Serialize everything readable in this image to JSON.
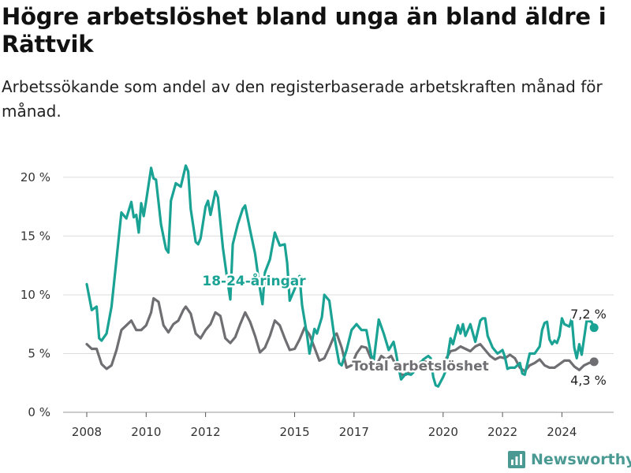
{
  "title": "Högre arbetslöshet bland unga än bland äldre i Rättvik",
  "subtitle": "Arbetssökande som andel av den registerbaserade arbetskraften månad för månad.",
  "brand": {
    "name": "Newsworthy",
    "color": "#4a9a93"
  },
  "chart_data": {
    "type": "line",
    "title": "Högre arbetslöshet bland unga än bland äldre i Rättvik",
    "subtitle": "Arbetssökande som andel av den registerbaserade arbetskraften månad för månad.",
    "xlabel": "",
    "ylabel": "",
    "x_ticks": [
      "2008",
      "2010",
      "2012",
      "2015",
      "2017",
      "2020",
      "2022",
      "2024"
    ],
    "y_ticks": [
      "0 %",
      "5 %",
      "10 %",
      "15 %",
      "20 %"
    ],
    "ylim": [
      0,
      21
    ],
    "xlim": [
      "2007-06",
      "2025-12"
    ],
    "grid": true,
    "legend": "inline labels",
    "series": [
      {
        "name": "18-24-åringar",
        "color": "#1aa394",
        "last_label": "7,2 %",
        "points": [
          [
            "2008-01",
            10.9
          ],
          [
            "2008-03",
            8.7
          ],
          [
            "2008-05",
            9.0
          ],
          [
            "2008-06",
            6.3
          ],
          [
            "2008-07",
            6.1
          ],
          [
            "2008-09",
            6.7
          ],
          [
            "2008-11",
            9.0
          ],
          [
            "2009-01",
            13.0
          ],
          [
            "2009-03",
            17.0
          ],
          [
            "2009-05",
            16.5
          ],
          [
            "2009-07",
            17.9
          ],
          [
            "2009-08",
            16.6
          ],
          [
            "2009-09",
            16.8
          ],
          [
            "2009-10",
            15.3
          ],
          [
            "2009-11",
            17.8
          ],
          [
            "2009-12",
            16.7
          ],
          [
            "2010-01",
            18.0
          ],
          [
            "2010-03",
            20.8
          ],
          [
            "2010-04",
            19.9
          ],
          [
            "2010-05",
            19.8
          ],
          [
            "2010-07",
            16.0
          ],
          [
            "2010-09",
            13.9
          ],
          [
            "2010-10",
            13.6
          ],
          [
            "2010-11",
            18.0
          ],
          [
            "2011-01",
            19.5
          ],
          [
            "2011-03",
            19.2
          ],
          [
            "2011-05",
            21.0
          ],
          [
            "2011-06",
            20.5
          ],
          [
            "2011-07",
            17.3
          ],
          [
            "2011-09",
            14.5
          ],
          [
            "2011-10",
            14.3
          ],
          [
            "2011-11",
            14.8
          ],
          [
            "2012-01",
            17.5
          ],
          [
            "2012-02",
            18.0
          ],
          [
            "2012-03",
            16.8
          ],
          [
            "2012-05",
            18.8
          ],
          [
            "2012-06",
            18.3
          ],
          [
            "2012-08",
            14.0
          ],
          [
            "2012-10",
            11.0
          ],
          [
            "2012-11",
            9.6
          ],
          [
            "2012-12",
            14.3
          ],
          [
            "2013-02",
            16.0
          ],
          [
            "2013-04",
            17.3
          ],
          [
            "2013-05",
            17.6
          ],
          [
            "2013-07",
            15.5
          ],
          [
            "2013-09",
            13.5
          ],
          [
            "2013-11",
            10.5
          ],
          [
            "2013-12",
            9.2
          ],
          [
            "2014-01",
            11.9
          ],
          [
            "2014-03",
            13.0
          ],
          [
            "2014-05",
            15.3
          ],
          [
            "2014-07",
            14.2
          ],
          [
            "2014-09",
            14.3
          ],
          [
            "2014-10",
            12.7
          ],
          [
            "2014-11",
            9.5
          ],
          [
            "2015-01",
            10.5
          ],
          [
            "2015-03",
            11.6
          ],
          [
            "2015-04",
            9.1
          ],
          [
            "2015-06",
            6.6
          ],
          [
            "2015-07",
            5.0
          ],
          [
            "2015-09",
            7.1
          ],
          [
            "2015-10",
            6.7
          ],
          [
            "2015-12",
            8.1
          ],
          [
            "2016-01",
            10.0
          ],
          [
            "2016-03",
            9.5
          ],
          [
            "2016-05",
            6.5
          ],
          [
            "2016-07",
            4.2
          ],
          [
            "2016-08",
            4.0
          ],
          [
            "2016-10",
            5.3
          ],
          [
            "2016-12",
            7.0
          ],
          [
            "2017-02",
            7.5
          ],
          [
            "2017-04",
            7.0
          ],
          [
            "2017-06",
            7.0
          ],
          [
            "2017-08",
            4.8
          ],
          [
            "2017-09",
            4.5
          ],
          [
            "2017-11",
            7.9
          ],
          [
            "2018-01",
            6.7
          ],
          [
            "2018-03",
            5.3
          ],
          [
            "2018-05",
            6.0
          ],
          [
            "2018-06",
            5.0
          ],
          [
            "2018-07",
            3.8
          ],
          [
            "2018-08",
            2.8
          ],
          [
            "2018-10",
            3.3
          ],
          [
            "2018-12",
            3.2
          ],
          [
            "2019-01",
            3.4
          ],
          [
            "2019-03",
            4.0
          ],
          [
            "2019-05",
            4.5
          ],
          [
            "2019-07",
            4.8
          ],
          [
            "2019-08",
            4.6
          ],
          [
            "2019-09",
            3.0
          ],
          [
            "2019-10",
            2.3
          ],
          [
            "2019-11",
            2.2
          ],
          [
            "2020-01",
            3.0
          ],
          [
            "2020-02",
            3.5
          ],
          [
            "2020-03",
            5.0
          ],
          [
            "2020-04",
            6.3
          ],
          [
            "2020-05",
            5.8
          ],
          [
            "2020-07",
            7.4
          ],
          [
            "2020-08",
            6.7
          ],
          [
            "2020-09",
            7.5
          ],
          [
            "2020-10",
            6.5
          ],
          [
            "2020-12",
            7.5
          ],
          [
            "2021-02",
            6.0
          ],
          [
            "2021-04",
            7.8
          ],
          [
            "2021-05",
            8.0
          ],
          [
            "2021-06",
            8.0
          ],
          [
            "2021-07",
            6.5
          ],
          [
            "2021-09",
            5.5
          ],
          [
            "2021-11",
            5.0
          ],
          [
            "2022-01",
            5.3
          ],
          [
            "2022-02",
            4.7
          ],
          [
            "2022-03",
            3.7
          ],
          [
            "2022-04",
            3.8
          ],
          [
            "2022-06",
            3.8
          ],
          [
            "2022-08",
            4.2
          ],
          [
            "2022-09",
            3.3
          ],
          [
            "2022-10",
            3.2
          ],
          [
            "2022-12",
            5.0
          ],
          [
            "2023-02",
            5.0
          ],
          [
            "2023-04",
            5.6
          ],
          [
            "2023-05",
            7.0
          ],
          [
            "2023-06",
            7.6
          ],
          [
            "2023-07",
            7.7
          ],
          [
            "2023-08",
            6.2
          ],
          [
            "2023-09",
            5.8
          ],
          [
            "2023-10",
            6.1
          ],
          [
            "2023-11",
            5.9
          ],
          [
            "2023-12",
            6.5
          ],
          [
            "2024-01",
            8.0
          ],
          [
            "2024-02",
            7.5
          ],
          [
            "2024-04",
            7.3
          ],
          [
            "2024-05",
            8.0
          ],
          [
            "2024-06",
            5.5
          ],
          [
            "2024-07",
            4.6
          ],
          [
            "2024-08",
            5.8
          ],
          [
            "2024-09",
            4.9
          ],
          [
            "2024-11",
            7.8
          ],
          [
            "2025-01",
            7.7
          ],
          [
            "2025-02",
            7.2
          ]
        ]
      },
      {
        "name": "Total arbetslöshet",
        "color": "#6f6f73",
        "last_label": "4,3 %",
        "points": [
          [
            "2008-01",
            5.8
          ],
          [
            "2008-03",
            5.4
          ],
          [
            "2008-05",
            5.4
          ],
          [
            "2008-07",
            4.1
          ],
          [
            "2008-09",
            3.7
          ],
          [
            "2008-11",
            4.0
          ],
          [
            "2009-01",
            5.3
          ],
          [
            "2009-03",
            7.0
          ],
          [
            "2009-05",
            7.4
          ],
          [
            "2009-07",
            7.8
          ],
          [
            "2009-09",
            7.0
          ],
          [
            "2009-11",
            7.0
          ],
          [
            "2010-01",
            7.4
          ],
          [
            "2010-03",
            8.5
          ],
          [
            "2010-04",
            9.7
          ],
          [
            "2010-06",
            9.4
          ],
          [
            "2010-08",
            7.4
          ],
          [
            "2010-10",
            6.8
          ],
          [
            "2010-12",
            7.5
          ],
          [
            "2011-02",
            7.8
          ],
          [
            "2011-04",
            8.7
          ],
          [
            "2011-05",
            9.0
          ],
          [
            "2011-07",
            8.4
          ],
          [
            "2011-09",
            6.7
          ],
          [
            "2011-11",
            6.3
          ],
          [
            "2012-01",
            7.0
          ],
          [
            "2012-03",
            7.5
          ],
          [
            "2012-05",
            8.5
          ],
          [
            "2012-07",
            8.2
          ],
          [
            "2012-09",
            6.3
          ],
          [
            "2012-11",
            5.9
          ],
          [
            "2013-01",
            6.4
          ],
          [
            "2013-03",
            7.5
          ],
          [
            "2013-05",
            8.5
          ],
          [
            "2013-07",
            7.7
          ],
          [
            "2013-09",
            6.5
          ],
          [
            "2013-11",
            5.1
          ],
          [
            "2014-01",
            5.5
          ],
          [
            "2014-03",
            6.5
          ],
          [
            "2014-05",
            7.8
          ],
          [
            "2014-07",
            7.4
          ],
          [
            "2014-09",
            6.3
          ],
          [
            "2014-11",
            5.3
          ],
          [
            "2015-01",
            5.4
          ],
          [
            "2015-03",
            6.2
          ],
          [
            "2015-05",
            7.2
          ],
          [
            "2015-07",
            6.6
          ],
          [
            "2015-09",
            5.5
          ],
          [
            "2015-11",
            4.4
          ],
          [
            "2016-01",
            4.6
          ],
          [
            "2016-03",
            5.5
          ],
          [
            "2016-05",
            6.5
          ],
          [
            "2016-06",
            6.7
          ],
          [
            "2016-08",
            5.5
          ],
          [
            "2016-10",
            3.8
          ],
          [
            "2016-12",
            4.0
          ],
          [
            "2017-02",
            5.0
          ],
          [
            "2017-04",
            5.6
          ],
          [
            "2017-06",
            5.5
          ],
          [
            "2017-08",
            4.5
          ],
          [
            "2017-10",
            4.0
          ],
          [
            "2017-12",
            4.8
          ],
          [
            "2018-02",
            4.5
          ],
          [
            "2018-04",
            4.8
          ],
          [
            "2018-06",
            4.0
          ],
          [
            "2018-08",
            3.2
          ],
          [
            "2018-10",
            3.2
          ],
          [
            "2018-12",
            3.5
          ],
          [
            "2019-02",
            3.8
          ],
          [
            "2019-04",
            4.3
          ],
          [
            "2019-06",
            4.3
          ],
          [
            "2019-08",
            3.8
          ],
          [
            "2019-10",
            3.6
          ],
          [
            "2019-12",
            4.2
          ],
          [
            "2020-02",
            4.5
          ],
          [
            "2020-04",
            5.2
          ],
          [
            "2020-06",
            5.3
          ],
          [
            "2020-08",
            5.6
          ],
          [
            "2020-10",
            5.4
          ],
          [
            "2020-12",
            5.2
          ],
          [
            "2021-02",
            5.6
          ],
          [
            "2021-04",
            5.8
          ],
          [
            "2021-06",
            5.3
          ],
          [
            "2021-08",
            4.8
          ],
          [
            "2021-10",
            4.5
          ],
          [
            "2021-12",
            4.7
          ],
          [
            "2022-02",
            4.6
          ],
          [
            "2022-04",
            4.9
          ],
          [
            "2022-06",
            4.6
          ],
          [
            "2022-08",
            3.8
          ],
          [
            "2022-10",
            3.5
          ],
          [
            "2022-12",
            4.0
          ],
          [
            "2023-02",
            4.2
          ],
          [
            "2023-04",
            4.5
          ],
          [
            "2023-06",
            4.0
          ],
          [
            "2023-08",
            3.8
          ],
          [
            "2023-10",
            3.8
          ],
          [
            "2023-12",
            4.1
          ],
          [
            "2024-02",
            4.4
          ],
          [
            "2024-04",
            4.4
          ],
          [
            "2024-06",
            3.9
          ],
          [
            "2024-08",
            3.6
          ],
          [
            "2024-10",
            4.0
          ],
          [
            "2024-12",
            4.2
          ],
          [
            "2025-02",
            4.3
          ]
        ]
      }
    ]
  }
}
